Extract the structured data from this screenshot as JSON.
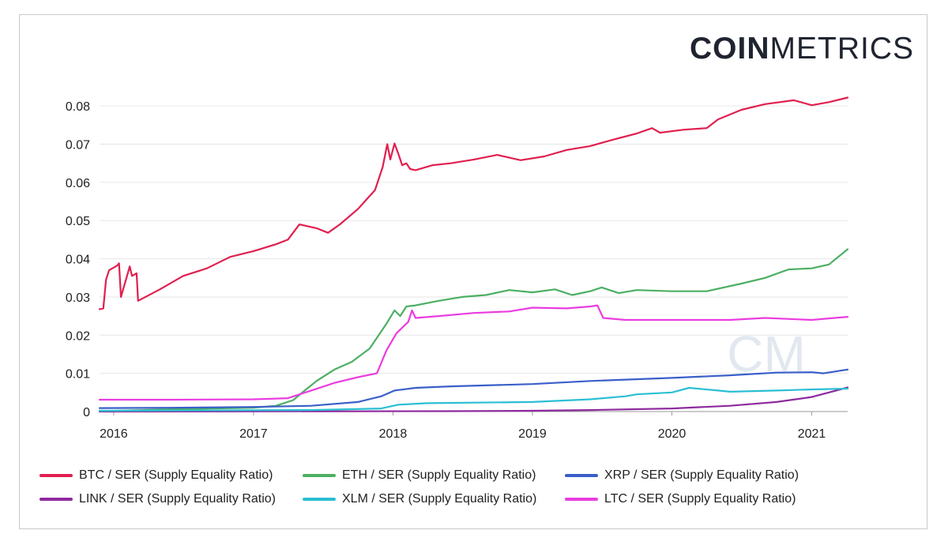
{
  "brand": {
    "logo_bold": "COIN",
    "logo_light": "METRICS"
  },
  "watermark": "CM",
  "chart_data": {
    "type": "line",
    "title": "",
    "xlabel": "",
    "ylabel": "",
    "x_ticks": [
      "2016",
      "2017",
      "2018",
      "2019",
      "2020",
      "2021"
    ],
    "y_ticks": [
      "0",
      "0.01",
      "0.02",
      "0.03",
      "0.04",
      "0.05",
      "0.06",
      "0.07",
      "0.08"
    ],
    "xlim": [
      "2015-11-25",
      "2021-04-05"
    ],
    "ylim": [
      0,
      0.085
    ],
    "grid": true,
    "legend_position": "bottom",
    "series": [
      {
        "name": "BTC / SER (Supply Equality Ratio)",
        "color": "#e0204f",
        "points": [
          [
            "2015-11-25",
            0.0268
          ],
          [
            "2015-12-05",
            0.027
          ],
          [
            "2015-12-12",
            0.0345
          ],
          [
            "2015-12-20",
            0.037
          ],
          [
            "2016-01-10",
            0.0382
          ],
          [
            "2016-01-15",
            0.0388
          ],
          [
            "2016-01-20",
            0.03
          ],
          [
            "2016-02-05",
            0.0355
          ],
          [
            "2016-02-12",
            0.038
          ],
          [
            "2016-02-18",
            0.0355
          ],
          [
            "2016-03-01",
            0.0362
          ],
          [
            "2016-03-05",
            0.029
          ],
          [
            "2016-05-01",
            0.032
          ],
          [
            "2016-07-01",
            0.0355
          ],
          [
            "2016-09-01",
            0.0375
          ],
          [
            "2016-11-01",
            0.0405
          ],
          [
            "2017-01-01",
            0.042
          ],
          [
            "2017-03-01",
            0.0438
          ],
          [
            "2017-04-01",
            0.045
          ],
          [
            "2017-05-01",
            0.049
          ],
          [
            "2017-06-15",
            0.048
          ],
          [
            "2017-07-15",
            0.0468
          ],
          [
            "2017-08-15",
            0.049
          ],
          [
            "2017-10-01",
            0.053
          ],
          [
            "2017-11-15",
            0.058
          ],
          [
            "2017-12-05",
            0.064
          ],
          [
            "2017-12-17",
            0.07
          ],
          [
            "2017-12-25",
            0.066
          ],
          [
            "2018-01-05",
            0.0702
          ],
          [
            "2018-01-15",
            0.0675
          ],
          [
            "2018-01-25",
            0.0645
          ],
          [
            "2018-02-05",
            0.065
          ],
          [
            "2018-02-15",
            0.0635
          ],
          [
            "2018-03-01",
            0.0632
          ],
          [
            "2018-04-15",
            0.0645
          ],
          [
            "2018-06-01",
            0.065
          ],
          [
            "2018-08-01",
            0.066
          ],
          [
            "2018-10-01",
            0.0672
          ],
          [
            "2018-12-01",
            0.0658
          ],
          [
            "2019-02-01",
            0.0668
          ],
          [
            "2019-04-01",
            0.0685
          ],
          [
            "2019-06-01",
            0.0695
          ],
          [
            "2019-08-01",
            0.0712
          ],
          [
            "2019-10-01",
            0.0728
          ],
          [
            "2019-11-10",
            0.0742
          ],
          [
            "2019-12-01",
            0.073
          ],
          [
            "2020-02-01",
            0.0738
          ],
          [
            "2020-04-01",
            0.0742
          ],
          [
            "2020-05-01",
            0.0765
          ],
          [
            "2020-07-01",
            0.079
          ],
          [
            "2020-09-01",
            0.0805
          ],
          [
            "2020-11-15",
            0.0815
          ],
          [
            "2021-01-01",
            0.0802
          ],
          [
            "2021-02-15",
            0.081
          ],
          [
            "2021-04-05",
            0.0822
          ]
        ]
      },
      {
        "name": "ETH / SER (Supply Equality Ratio)",
        "color": "#4caf63",
        "points": [
          [
            "2015-11-25",
            0.0001
          ],
          [
            "2016-06-01",
            0.0006
          ],
          [
            "2017-01-01",
            0.001
          ],
          [
            "2017-03-01",
            0.0015
          ],
          [
            "2017-04-15",
            0.003
          ],
          [
            "2017-05-15",
            0.0055
          ],
          [
            "2017-06-15",
            0.008
          ],
          [
            "2017-08-01",
            0.011
          ],
          [
            "2017-09-15",
            0.013
          ],
          [
            "2017-11-01",
            0.0165
          ],
          [
            "2017-12-15",
            0.023
          ],
          [
            "2018-01-05",
            0.0265
          ],
          [
            "2018-01-20",
            0.025
          ],
          [
            "2018-02-05",
            0.0275
          ],
          [
            "2018-03-01",
            0.0278
          ],
          [
            "2018-05-01",
            0.029
          ],
          [
            "2018-07-01",
            0.03
          ],
          [
            "2018-09-01",
            0.0305
          ],
          [
            "2018-11-01",
            0.0318
          ],
          [
            "2019-01-01",
            0.0312
          ],
          [
            "2019-03-01",
            0.032
          ],
          [
            "2019-04-15",
            0.0305
          ],
          [
            "2019-06-01",
            0.0315
          ],
          [
            "2019-07-01",
            0.0325
          ],
          [
            "2019-08-15",
            0.031
          ],
          [
            "2019-10-01",
            0.0318
          ],
          [
            "2020-01-01",
            0.0315
          ],
          [
            "2020-04-01",
            0.0315
          ],
          [
            "2020-07-01",
            0.0335
          ],
          [
            "2020-09-01",
            0.035
          ],
          [
            "2020-11-01",
            0.0372
          ],
          [
            "2021-01-01",
            0.0375
          ],
          [
            "2021-02-15",
            0.0385
          ],
          [
            "2021-04-05",
            0.0425
          ]
        ]
      },
      {
        "name": "XRP / SER (Supply Equality Ratio)",
        "color": "#3a5fc9",
        "points": [
          [
            "2015-11-25",
            0.0009
          ],
          [
            "2016-06-01",
            0.001
          ],
          [
            "2017-01-01",
            0.0012
          ],
          [
            "2017-06-01",
            0.0015
          ],
          [
            "2017-10-01",
            0.0025
          ],
          [
            "2017-12-01",
            0.004
          ],
          [
            "2018-01-05",
            0.0055
          ],
          [
            "2018-03-01",
            0.0062
          ],
          [
            "2018-06-01",
            0.0066
          ],
          [
            "2019-01-01",
            0.0072
          ],
          [
            "2019-06-01",
            0.008
          ],
          [
            "2020-01-01",
            0.0088
          ],
          [
            "2020-06-01",
            0.0095
          ],
          [
            "2020-10-01",
            0.0102
          ],
          [
            "2021-01-01",
            0.0103
          ],
          [
            "2021-02-01",
            0.01
          ],
          [
            "2021-04-05",
            0.011
          ]
        ]
      },
      {
        "name": "LINK / SER (Supply Equality Ratio)",
        "color": "#8e2a9e",
        "points": [
          [
            "2015-11-25",
            0.0
          ],
          [
            "2018-06-01",
            0.0001
          ],
          [
            "2019-01-01",
            0.0002
          ],
          [
            "2019-06-01",
            0.0004
          ],
          [
            "2020-01-01",
            0.0008
          ],
          [
            "2020-06-01",
            0.0015
          ],
          [
            "2020-10-01",
            0.0025
          ],
          [
            "2021-01-01",
            0.0038
          ],
          [
            "2021-02-15",
            0.005
          ],
          [
            "2021-04-05",
            0.0063
          ]
        ]
      },
      {
        "name": "XLM / SER (Supply Equality Ratio)",
        "color": "#2bbfd4",
        "points": [
          [
            "2015-11-25",
            0.0002
          ],
          [
            "2017-06-01",
            0.0004
          ],
          [
            "2017-12-01",
            0.0008
          ],
          [
            "2018-01-15",
            0.0018
          ],
          [
            "2018-04-01",
            0.0022
          ],
          [
            "2019-01-01",
            0.0025
          ],
          [
            "2019-06-01",
            0.0032
          ],
          [
            "2019-09-01",
            0.004
          ],
          [
            "2019-10-01",
            0.0045
          ],
          [
            "2020-01-01",
            0.005
          ],
          [
            "2020-02-15",
            0.0062
          ],
          [
            "2020-05-01",
            0.0055
          ],
          [
            "2020-06-01",
            0.0052
          ],
          [
            "2020-10-01",
            0.0055
          ],
          [
            "2021-01-01",
            0.0058
          ],
          [
            "2021-04-05",
            0.006
          ]
        ]
      },
      {
        "name": "LTC / SER (Supply Equality Ratio)",
        "color": "#ea3de0",
        "points": [
          [
            "2015-11-25",
            0.0031
          ],
          [
            "2016-06-01",
            0.0031
          ],
          [
            "2017-01-01",
            0.0032
          ],
          [
            "2017-04-01",
            0.0035
          ],
          [
            "2017-06-01",
            0.0055
          ],
          [
            "2017-08-01",
            0.0075
          ],
          [
            "2017-10-01",
            0.009
          ],
          [
            "2017-11-20",
            0.01
          ],
          [
            "2017-12-15",
            0.016
          ],
          [
            "2018-01-10",
            0.0205
          ],
          [
            "2018-02-10",
            0.0235
          ],
          [
            "2018-02-20",
            0.0265
          ],
          [
            "2018-03-01",
            0.0245
          ],
          [
            "2018-05-01",
            0.025
          ],
          [
            "2018-08-01",
            0.0258
          ],
          [
            "2018-11-01",
            0.0262
          ],
          [
            "2019-01-01",
            0.0272
          ],
          [
            "2019-04-01",
            0.027
          ],
          [
            "2019-06-01",
            0.0275
          ],
          [
            "2019-06-20",
            0.0278
          ],
          [
            "2019-07-05",
            0.0245
          ],
          [
            "2019-09-01",
            0.024
          ],
          [
            "2020-01-01",
            0.024
          ],
          [
            "2020-06-01",
            0.024
          ],
          [
            "2020-09-01",
            0.0245
          ],
          [
            "2021-01-01",
            0.024
          ],
          [
            "2021-03-01",
            0.0245
          ],
          [
            "2021-04-05",
            0.0248
          ]
        ]
      }
    ]
  }
}
